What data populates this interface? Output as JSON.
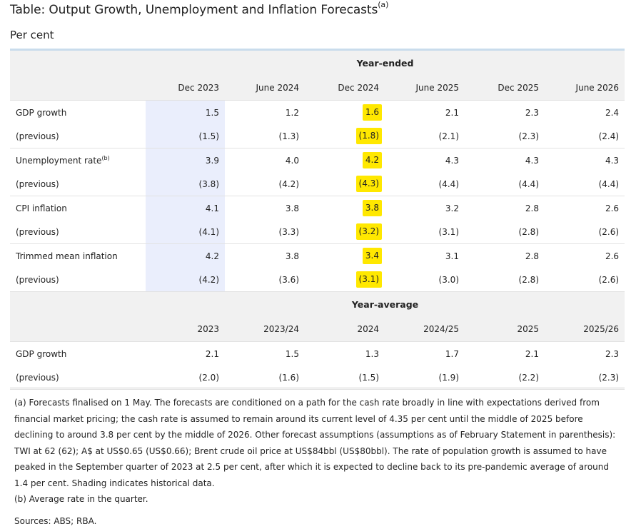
{
  "title": "Table: Output Growth, Unemployment and Inflation Forecasts",
  "title_note": "(a)",
  "subtitle": "Per cent",
  "year_ended": {
    "heading": "Year-ended",
    "columns": [
      "Dec 2023",
      "June 2024",
      "Dec 2024",
      "June 2025",
      "Dec 2025",
      "June 2026"
    ],
    "rows": [
      {
        "label": "GDP growth",
        "note": "",
        "values": [
          "1.5",
          "1.2",
          "1.6",
          "2.1",
          "2.3",
          "2.4"
        ],
        "prev_label": "(previous)",
        "previous": [
          "(1.5)",
          "(1.3)",
          "(1.8)",
          "(2.1)",
          "(2.3)",
          "(2.4)"
        ]
      },
      {
        "label": "Unemployment rate",
        "note": "(b)",
        "values": [
          "3.9",
          "4.0",
          "4.2",
          "4.3",
          "4.3",
          "4.3"
        ],
        "prev_label": "(previous)",
        "previous": [
          "(3.8)",
          "(4.2)",
          "(4.3)",
          "(4.4)",
          "(4.4)",
          "(4.4)"
        ]
      },
      {
        "label": "CPI inflation",
        "note": "",
        "values": [
          "4.1",
          "3.8",
          "3.8",
          "3.2",
          "2.8",
          "2.6"
        ],
        "prev_label": "(previous)",
        "previous": [
          "(4.1)",
          "(3.3)",
          "(3.2)",
          "(3.1)",
          "(2.8)",
          "(2.6)"
        ]
      },
      {
        "label": "Trimmed mean inflation",
        "note": "",
        "values": [
          "4.2",
          "3.8",
          "3.4",
          "3.1",
          "2.8",
          "2.6"
        ],
        "prev_label": "(previous)",
        "previous": [
          "(4.2)",
          "(3.6)",
          "(3.1)",
          "(3.0)",
          "(2.8)",
          "(2.6)"
        ]
      }
    ]
  },
  "year_average": {
    "heading": "Year-average",
    "columns": [
      "2023",
      "2023/24",
      "2024",
      "2024/25",
      "2025",
      "2025/26"
    ],
    "rows": [
      {
        "label": "GDP growth",
        "values": [
          "2.1",
          "1.5",
          "1.3",
          "1.7",
          "2.1",
          "2.3"
        ],
        "prev_label": "(previous)",
        "previous": [
          "(2.0)",
          "(1.6)",
          "(1.5)",
          "(1.9)",
          "(2.2)",
          "(2.3)"
        ]
      }
    ]
  },
  "notes": {
    "a": "(a) Forecasts finalised on 1 May. The forecasts are conditioned on a path for the cash rate broadly in line with expectations derived from financial market pricing; the cash rate is assumed to remain around its current level of 4.35 per cent until the middle of 2025 before declining to around 3.8 per cent by the middle of 2026. Other forecast assumptions (assumptions as of February Statement in parenthesis): TWI at 62 (62); A$ at US$0.65 (US$0.66); Brent crude oil price at US$84bbl (US$80bbl). The rate of population growth is assumed to have peaked in the September quarter of 2023 at 2.5 per cent, after which it is expected to decline back to its pre-pandemic average of around 1.4 per cent. Shading indicates historical data.",
    "b": "(b) Average rate in the quarter.",
    "sources": "Sources: ABS; RBA."
  },
  "colors": {
    "historical_shading": "#eaeefc",
    "highlight": "#ffe800",
    "header_bg": "#f1f1f1",
    "top_rule": "#c9dcec"
  }
}
